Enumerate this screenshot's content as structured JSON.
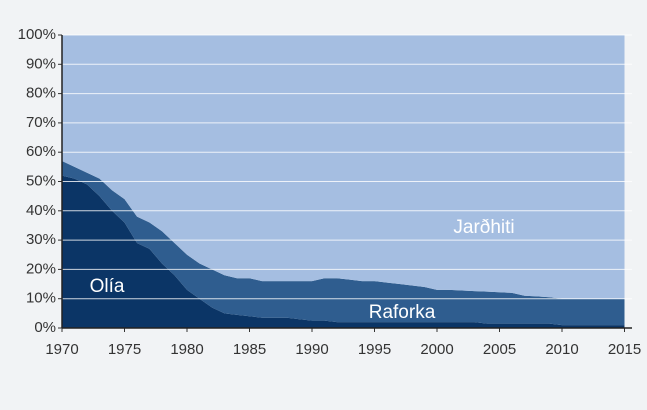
{
  "chart_data": {
    "type": "stacked_area",
    "x": [
      1970,
      1971,
      1972,
      1973,
      1974,
      1975,
      1976,
      1977,
      1978,
      1979,
      1980,
      1981,
      1982,
      1983,
      1984,
      1985,
      1986,
      1987,
      1988,
      1989,
      1990,
      1991,
      1992,
      1993,
      1994,
      1995,
      1996,
      1997,
      1998,
      1999,
      2000,
      2001,
      2002,
      2003,
      2004,
      2005,
      2006,
      2007,
      2008,
      2009,
      2010,
      2011,
      2012,
      2013,
      2014,
      2015
    ],
    "series": [
      {
        "name": "Olía",
        "color": "#0b3566",
        "values": [
          52,
          51,
          49,
          45,
          40,
          36,
          29,
          27,
          22,
          18,
          13,
          10,
          7,
          5,
          4.5,
          4,
          3.5,
          3.5,
          3.5,
          3,
          2.5,
          2.5,
          2,
          2,
          2,
          2,
          2,
          2,
          2,
          2,
          2,
          2,
          2,
          2,
          1.5,
          1.5,
          1.5,
          1.5,
          1.5,
          1.5,
          1,
          1,
          1,
          1,
          1,
          1
        ]
      },
      {
        "name": "Raforka",
        "color": "#2f5d8f",
        "values": [
          5,
          4,
          4,
          6,
          7,
          8,
          9,
          9,
          11,
          11,
          12,
          12,
          13,
          13,
          12.5,
          13,
          12.5,
          12.5,
          12.5,
          13,
          13.5,
          14.5,
          15,
          14.5,
          14,
          14,
          13.5,
          13,
          12.5,
          12,
          11,
          11,
          10.8,
          10.6,
          10.9,
          10.7,
          10.5,
          9.5,
          9.3,
          9,
          9,
          9,
          9,
          9,
          9,
          9
        ]
      },
      {
        "name": "Jarðhiti",
        "color": "#a5bee1",
        "values": [
          43,
          45,
          47,
          49,
          53,
          56,
          62,
          64,
          67,
          71,
          75,
          78,
          80,
          82,
          83,
          83,
          84,
          84,
          84,
          84,
          84,
          83,
          83,
          83.5,
          84,
          84,
          84.5,
          85,
          85.5,
          86,
          87,
          87,
          87.2,
          87.4,
          87.6,
          87.8,
          88,
          89,
          89.2,
          89.5,
          90,
          90,
          90,
          90,
          90,
          90
        ]
      }
    ],
    "xlim": [
      1970,
      2015.6
    ],
    "xticks": [
      1970,
      1975,
      1980,
      1985,
      1990,
      1995,
      2000,
      2005,
      2010,
      2015
    ],
    "ylim": [
      0,
      100
    ],
    "yticks": [
      {
        "value": 0,
        "label": "0%"
      },
      {
        "value": 10,
        "label": "10%"
      },
      {
        "value": 20,
        "label": "20%"
      },
      {
        "value": 30,
        "label": "30%"
      },
      {
        "value": 40,
        "label": "40%"
      },
      {
        "value": 50,
        "label": "50%"
      },
      {
        "value": 60,
        "label": "60%"
      },
      {
        "value": 70,
        "label": "70%"
      },
      {
        "value": 80,
        "label": "80%"
      },
      {
        "value": 90,
        "label": "90%"
      },
      {
        "value": 100,
        "label": "100%"
      }
    ],
    "grid": true
  }
}
